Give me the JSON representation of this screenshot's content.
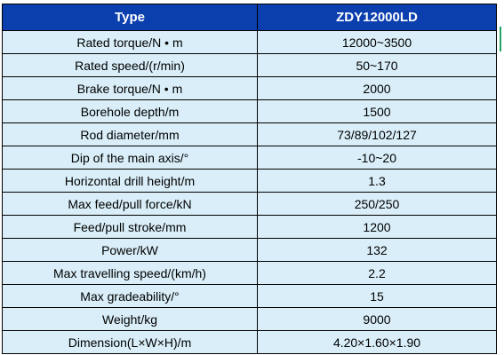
{
  "colors": {
    "header_bg": "#0b3fae",
    "header_text": "#ffffff",
    "row_bg": "#d9eef8",
    "border": "#000000"
  },
  "table": {
    "headers": [
      "Type",
      "ZDY12000LD"
    ],
    "rows": [
      [
        "Rated torque/N • m",
        "12000~3500"
      ],
      [
        "Rated speed/(r/min)",
        "50~170"
      ],
      [
        "Brake torque/N • m",
        "2000"
      ],
      [
        "Borehole depth/m",
        "1500"
      ],
      [
        "Rod diameter/mm",
        "73/89/102/127"
      ],
      [
        "Dip of the main axis/°",
        "-10~20"
      ],
      [
        "Horizontal drill height/m",
        "1.3"
      ],
      [
        "Max feed/pull force/kN",
        "250/250"
      ],
      [
        "Feed/pull stroke/mm",
        "1200"
      ],
      [
        "Power/kW",
        "132"
      ],
      [
        "Max travelling speed/(km/h)",
        "2.2"
      ],
      [
        "Max gradeability/°",
        "15"
      ],
      [
        "Weight/kg",
        "9000"
      ],
      [
        "Dimension(L×W×H)/m",
        "4.20×1.60×1.90"
      ]
    ]
  }
}
